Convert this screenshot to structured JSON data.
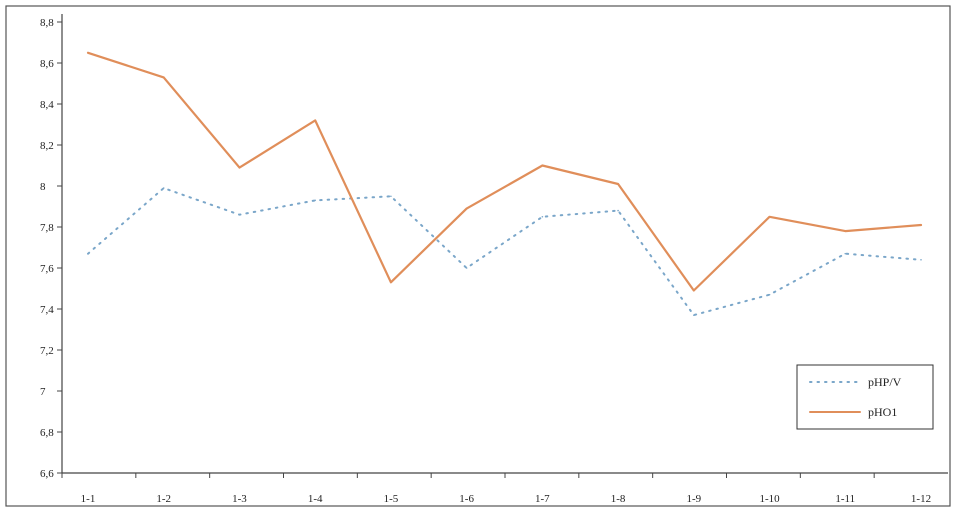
{
  "chart_data": {
    "type": "line",
    "title": "",
    "xlabel": "",
    "ylabel": "",
    "categories": [
      "1-1",
      "1-2",
      "1-3",
      "1-4",
      "1-5",
      "1-6",
      "1-7",
      "1-8",
      "1-9",
      "1-10",
      "1-11",
      "1-12"
    ],
    "ylim": [
      6.6,
      8.8
    ],
    "yticks": [
      "6,6",
      "6,8",
      "7",
      "7,2",
      "7,4",
      "7,6",
      "7,8",
      "8",
      "8,2",
      "8,4",
      "8,6",
      "8,8"
    ],
    "grid": false,
    "legend_position": "bottom-right",
    "series": [
      {
        "name": "pHP/V",
        "color": "#7aa6c9",
        "style": "dotted",
        "values": [
          7.67,
          7.99,
          7.86,
          7.93,
          7.95,
          7.6,
          7.85,
          7.88,
          7.37,
          7.47,
          7.67,
          7.64
        ]
      },
      {
        "name": "pHO1",
        "color": "#e08e5a",
        "style": "solid",
        "values": [
          8.65,
          8.53,
          8.09,
          8.32,
          7.53,
          7.89,
          8.1,
          8.01,
          7.49,
          7.85,
          7.78,
          7.81
        ]
      }
    ]
  }
}
